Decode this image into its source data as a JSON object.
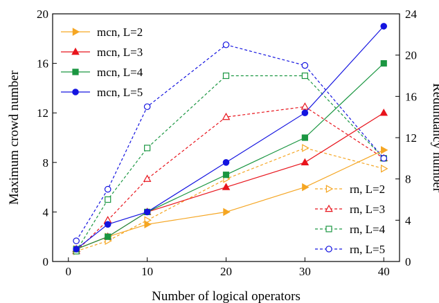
{
  "chart_data": {
    "type": "line",
    "xlabel": "Number of logical operators",
    "ylabel_left": "Maximum crowd number",
    "ylabel_right": "Redundancy number",
    "xlim": [
      -2,
      42
    ],
    "ylim_left": [
      0,
      20
    ],
    "ylim_right": [
      0,
      24
    ],
    "xticks": [
      0,
      10,
      20,
      30,
      40
    ],
    "yticks_left": [
      0,
      4,
      8,
      12,
      16,
      20
    ],
    "yticks_right": [
      0,
      4,
      8,
      12,
      16,
      20,
      24
    ],
    "grid": false,
    "x": [
      1,
      5,
      10,
      20,
      30,
      40
    ],
    "series": [
      {
        "name": "mcn, L=2",
        "axis": "left",
        "color": "#f5a623",
        "marker": "triangle-right",
        "filled": true,
        "dashed": false,
        "values": [
          1,
          2,
          3,
          4,
          6,
          9
        ]
      },
      {
        "name": "mcn, L=3",
        "axis": "left",
        "color": "#e8141c",
        "marker": "triangle-up",
        "filled": true,
        "dashed": false,
        "values": [
          1,
          2,
          4,
          6,
          8,
          12
        ]
      },
      {
        "name": "mcn, L=4",
        "axis": "left",
        "color": "#1a9641",
        "marker": "square",
        "filled": true,
        "dashed": false,
        "values": [
          1,
          2,
          4,
          7,
          10,
          16
        ]
      },
      {
        "name": "mcn, L=5",
        "axis": "left",
        "color": "#1414e0",
        "marker": "circle",
        "filled": true,
        "dashed": false,
        "values": [
          1,
          3,
          4,
          8,
          12,
          19
        ]
      },
      {
        "name": "rn, L=2",
        "axis": "right",
        "color": "#f5a623",
        "marker": "triangle-right",
        "filled": false,
        "dashed": true,
        "values": [
          1,
          2,
          4,
          8,
          11,
          9
        ]
      },
      {
        "name": "rn, L=3",
        "axis": "right",
        "color": "#e8141c",
        "marker": "triangle-up",
        "filled": false,
        "dashed": true,
        "values": [
          1,
          4,
          8,
          14,
          15,
          10
        ]
      },
      {
        "name": "rn, L=4",
        "axis": "right",
        "color": "#1a9641",
        "marker": "square",
        "filled": false,
        "dashed": true,
        "values": [
          1,
          6,
          11,
          18,
          18,
          10
        ]
      },
      {
        "name": "rn, L=5",
        "axis": "right",
        "color": "#1414e0",
        "marker": "circle",
        "filled": false,
        "dashed": true,
        "values": [
          2,
          7,
          15,
          21,
          19,
          10
        ]
      }
    ],
    "legends": [
      {
        "placement": "top-left",
        "items": [
          "mcn, L=2",
          "mcn, L=3",
          "mcn, L=4",
          "mcn, L=5"
        ]
      },
      {
        "placement": "bottom-right",
        "items": [
          "rn, L=2",
          "rn, L=3",
          "rn, L=4",
          "rn, L=5"
        ]
      }
    ]
  }
}
